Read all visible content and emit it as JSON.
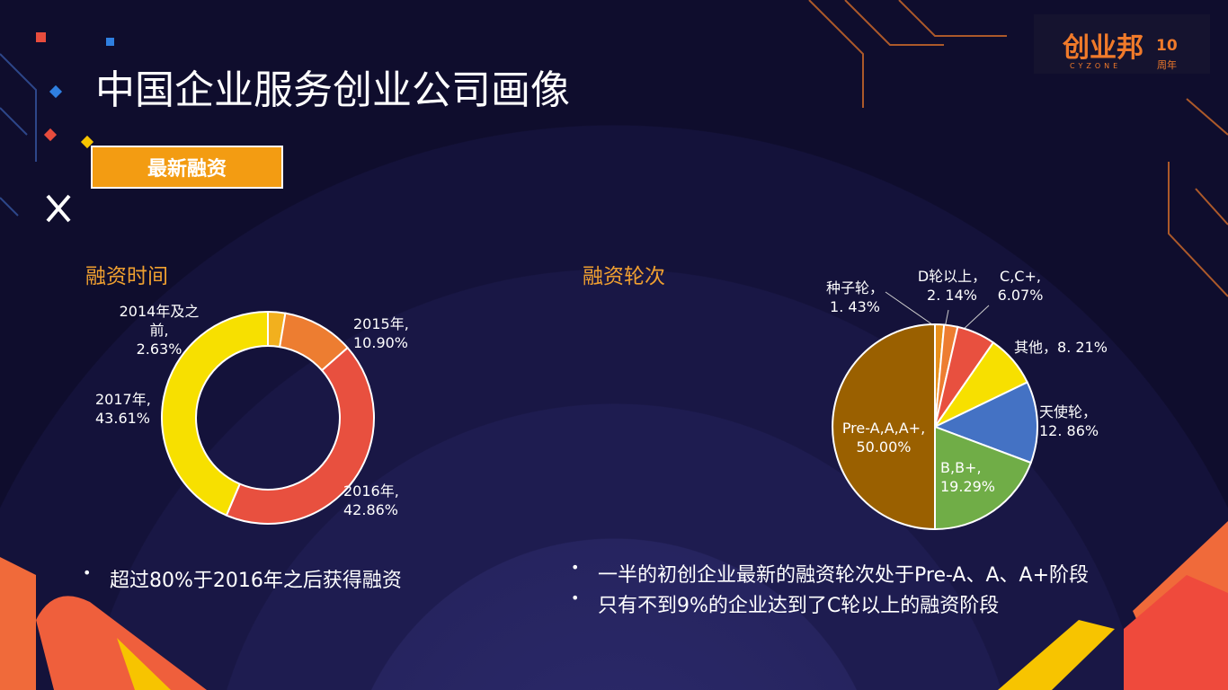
{
  "slide": {
    "title": "中国企业服务创业公司画像",
    "badge": "最新融资",
    "logo": "创业邦",
    "logo_sub": "CYZONE",
    "logo_badge": "10",
    "logo_year": "周年"
  },
  "chart_data": [
    {
      "type": "donut",
      "title": "融资时间",
      "categories": [
        "2014年及之前,",
        "2015年,",
        "2016年,",
        "2017年,"
      ],
      "values": [
        2.63,
        10.9,
        42.86,
        43.61
      ],
      "value_labels": [
        "2.63%",
        "10.90%",
        "42.86%",
        "43.61%"
      ],
      "colors": [
        "#f2b01e",
        "#ed7d31",
        "#e8503f",
        "#f7e000"
      ],
      "notes": [
        "超过80%于2016年之后获得融资"
      ]
    },
    {
      "type": "pie",
      "title": "融资轮次",
      "categories": [
        "种子轮，",
        "D轮以上，",
        "C,C+,",
        "其他，",
        "天使轮，",
        "B,B+,",
        "Pre-A,A,A+,"
      ],
      "values": [
        1.43,
        2.14,
        6.07,
        8.21,
        12.86,
        19.29,
        50
      ],
      "value_labels": [
        "1. 43%",
        "2. 14%",
        "6.07%",
        "8. 21%",
        "12. 86%",
        "19.29%",
        "50.00%"
      ],
      "colors": [
        "#e8901c",
        "#ed7d31",
        "#e8503f",
        "#f7e000",
        "#4472c4",
        "#70ad47",
        "#9a6000"
      ],
      "notes": [
        "一半的初创企业最新的融资轮次处于Pre-A、A、A+阶段",
        "只有不到9%的企业达到了C轮以上的融资阶段"
      ]
    }
  ]
}
